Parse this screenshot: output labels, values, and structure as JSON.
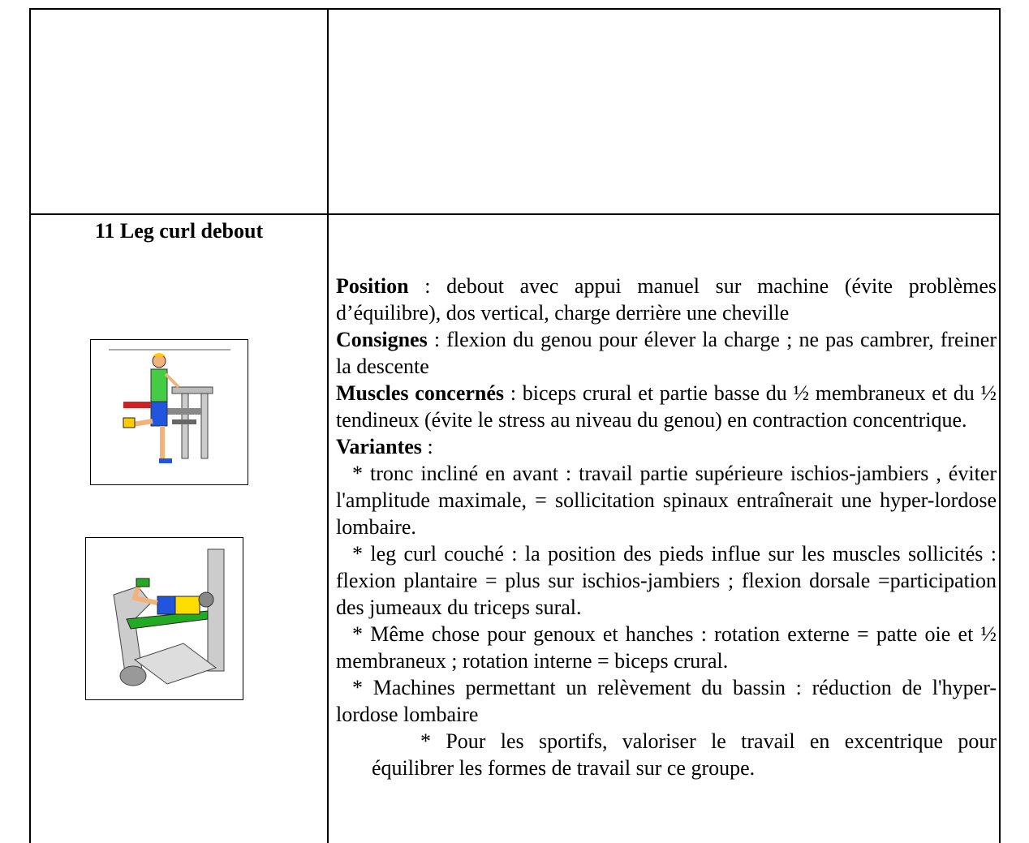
{
  "exercise": {
    "title": "11 Leg curl debout",
    "sections": [
      {
        "label": "Position",
        "text": " : debout avec appui manuel sur machine (évite problèmes d’équilibre), dos vertical, charge derrière une cheville"
      },
      {
        "label": "Consignes",
        "text": " : flexion du genou pour élever la charge ; ne pas cambrer, freiner la descente"
      },
      {
        "label": "Muscles concernés",
        "text": " : biceps crural et partie basse du ½ membraneux et du ½ tendineux (évite le stress au niveau du genou) en contraction concentrique."
      },
      {
        "label": "Variantes",
        "text": " :"
      }
    ],
    "variants": [
      "* tronc incliné en avant : travail partie supérieure ischios-jambiers , éviter l'amplitude maximale, = sollicitation spinaux entraînerait une hyper-lordose lombaire.",
      "* leg curl couché : la position des pieds influe sur les muscles sollicités : flexion plantaire = plus sur ischios-jambiers ; flexion dorsale =participation des jumeaux du triceps sural.",
      "* Même chose pour genoux et hanches : rotation externe = patte oie et ½ membraneux ; rotation interne = biceps crural.",
      "* Machines permettant un relèvement du bassin : réduction de l'hyper-lordose lombaire",
      "* Pour les sportifs, valoriser le travail en excentrique pour équilibrer les formes de travail sur ce groupe."
    ]
  }
}
